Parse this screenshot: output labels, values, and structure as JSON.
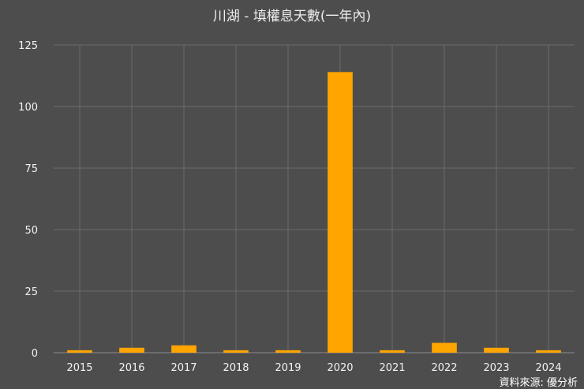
{
  "chart_data": {
    "type": "bar",
    "title": "川湖 - 填權息天數(一年內)",
    "xlabel": "",
    "ylabel": "",
    "categories": [
      "2015",
      "2016",
      "2017",
      "2018",
      "2019",
      "2020",
      "2021",
      "2022",
      "2023",
      "2024"
    ],
    "values": [
      1,
      2,
      3,
      1,
      1,
      114,
      1,
      4,
      2,
      1
    ],
    "ylim": [
      0,
      125
    ],
    "yticks": [
      0,
      25,
      50,
      75,
      100,
      125
    ],
    "grid": true,
    "legend": "none",
    "bar_color": "#ffa500",
    "background_color": "#4d4d4d"
  },
  "footer": {
    "source": "資料來源: 優分析"
  }
}
